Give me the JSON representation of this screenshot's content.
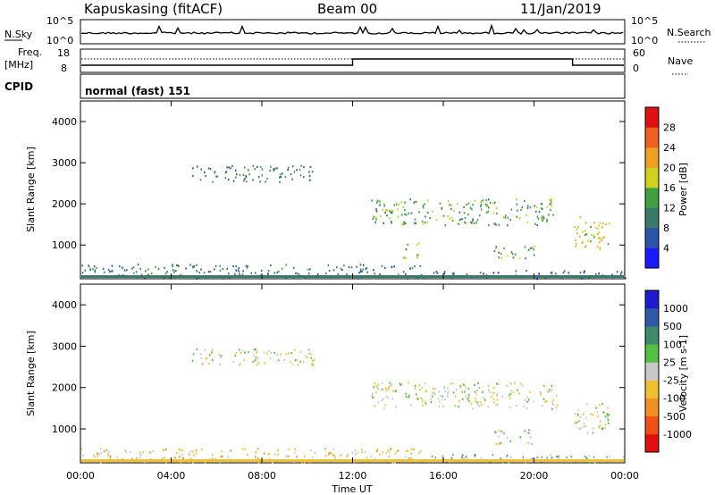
{
  "header": {
    "radar": "Kapuskasing (fitACF)",
    "beam": "Beam 00",
    "date": "11/Jan/2019"
  },
  "params": {
    "nsky_label": "N.Sky",
    "nsearch_label": "N.Search",
    "freq_label_top": "Freq.",
    "freq_label_unit": "[MHz]",
    "nave_label": "Nave",
    "cpid_label": "CPID",
    "cpid_text": "normal (fast) 151",
    "nsky_ticks": [
      "10^5",
      "10^0"
    ],
    "nsearch_ticks": [
      "10^5",
      "10^0"
    ],
    "freq_ticks": [
      "18",
      "8"
    ],
    "nave_ticks": [
      "60",
      "0"
    ]
  },
  "chart_data": [
    {
      "type": "heatmap",
      "name": "power",
      "ylabel": "Slant Range [km]",
      "xlabel": "Time UT",
      "x_ticks": [
        "00:00",
        "04:00",
        "08:00",
        "12:00",
        "16:00",
        "20:00",
        "00:00"
      ],
      "y_ticks": [
        1000,
        2000,
        3000,
        4000
      ],
      "xlim_hours": [
        0,
        24
      ],
      "ylim_km": [
        180,
        4500
      ],
      "colorbar": {
        "label": "Power [dB]",
        "ticks": [
          "4",
          "8",
          "12",
          "16",
          "20",
          "24",
          "28"
        ],
        "colors": [
          "#1a1aff",
          "#2b55a8",
          "#3a7a6a",
          "#3fa040",
          "#cfd21e",
          "#f0a020",
          "#f06020",
          "#e01010"
        ]
      },
      "regions": [
        {
          "t0": 4.9,
          "t1": 10.3,
          "r0": 2550,
          "r1": 2950,
          "level": 2
        },
        {
          "t0": 12.8,
          "t1": 21.0,
          "r0": 1500,
          "r1": 2150,
          "level": 3
        },
        {
          "t0": 14.2,
          "t1": 15.0,
          "r0": 700,
          "r1": 1100,
          "level": 4
        },
        {
          "t0": 18.2,
          "t1": 20.0,
          "r0": 650,
          "r1": 1000,
          "level": 3
        },
        {
          "t0": 21.7,
          "t1": 23.3,
          "r0": 900,
          "r1": 1700,
          "level": 4
        },
        {
          "t0": 0.0,
          "t1": 15.0,
          "r0": 200,
          "r1": 550,
          "level": 2
        },
        {
          "t0": 15.0,
          "t1": 24.0,
          "r0": 200,
          "r1": 400,
          "level": 1
        }
      ]
    },
    {
      "type": "heatmap",
      "name": "velocity",
      "ylabel": "Slant Range [km]",
      "xlabel": "Time UT",
      "x_ticks": [
        "00:00",
        "04:00",
        "08:00",
        "12:00",
        "16:00",
        "20:00",
        "00:00"
      ],
      "y_ticks": [
        1000,
        2000,
        3000,
        4000
      ],
      "xlim_hours": [
        0,
        24
      ],
      "ylim_km": [
        180,
        4500
      ],
      "colorbar": {
        "label": "Velocity [m s-1]",
        "ticks": [
          "1000",
          "500",
          "100",
          "25",
          "-25",
          "-100",
          "-500",
          "-1000"
        ],
        "colors": [
          "#1c1cd0",
          "#2e5aa8",
          "#3f8a6a",
          "#52c040",
          "#c8c8c8",
          "#f0c030",
          "#f09020",
          "#f05018",
          "#e01010"
        ]
      },
      "regions": [
        {
          "t0": 4.9,
          "t1": 10.3,
          "r0": 2550,
          "r1": 2950,
          "level": 4
        },
        {
          "t0": 12.8,
          "t1": 21.0,
          "r0": 1500,
          "r1": 2150,
          "level": 4
        },
        {
          "t0": 18.2,
          "t1": 20.0,
          "r0": 650,
          "r1": 1000,
          "level": 4
        },
        {
          "t0": 21.7,
          "t1": 23.3,
          "r0": 900,
          "r1": 1700,
          "level": 4
        },
        {
          "t0": 0.0,
          "t1": 15.0,
          "r0": 200,
          "r1": 550,
          "level": 5
        },
        {
          "t0": 15.0,
          "t1": 24.0,
          "r0": 200,
          "r1": 400,
          "level": 3
        }
      ]
    }
  ]
}
